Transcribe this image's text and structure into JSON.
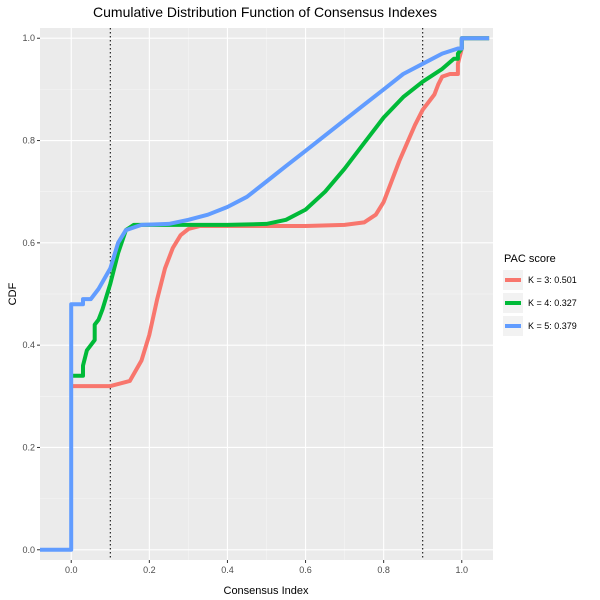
{
  "chart_data": {
    "type": "line",
    "title": "Cumulative Distribution Function of Consensus Indexes",
    "xlabel": "Consensus Index",
    "ylabel": "CDF",
    "xlim": [
      -0.08,
      1.08
    ],
    "ylim": [
      -0.02,
      1.02
    ],
    "x_ticks": [
      0.0,
      0.2,
      0.4,
      0.6,
      0.8,
      1.0
    ],
    "x_tick_labels": [
      "0.0",
      "0.2",
      "0.4",
      "0.6",
      "0.8",
      "1.0"
    ],
    "y_ticks": [
      0.0,
      0.2,
      0.4,
      0.6,
      0.8,
      1.0
    ],
    "y_tick_labels": [
      "0.0",
      "0.2",
      "0.4",
      "0.6",
      "0.8",
      "1.0"
    ],
    "vlines": [
      0.1,
      0.9
    ],
    "grid": true,
    "legend": {
      "title": "PAC score",
      "position": "right"
    },
    "series": [
      {
        "name": "K = 3: 0.501",
        "color": "#f8766d",
        "points": [
          [
            0.0,
            0.32
          ],
          [
            0.05,
            0.32
          ],
          [
            0.1,
            0.32
          ],
          [
            0.15,
            0.33
          ],
          [
            0.18,
            0.37
          ],
          [
            0.2,
            0.42
          ],
          [
            0.22,
            0.49
          ],
          [
            0.24,
            0.55
          ],
          [
            0.26,
            0.59
          ],
          [
            0.28,
            0.615
          ],
          [
            0.3,
            0.627
          ],
          [
            0.33,
            0.633
          ],
          [
            0.4,
            0.633
          ],
          [
            0.5,
            0.633
          ],
          [
            0.6,
            0.633
          ],
          [
            0.7,
            0.635
          ],
          [
            0.75,
            0.64
          ],
          [
            0.78,
            0.655
          ],
          [
            0.8,
            0.68
          ],
          [
            0.82,
            0.72
          ],
          [
            0.84,
            0.76
          ],
          [
            0.86,
            0.795
          ],
          [
            0.88,
            0.83
          ],
          [
            0.9,
            0.86
          ],
          [
            0.92,
            0.88
          ],
          [
            0.93,
            0.89
          ],
          [
            0.94,
            0.91
          ],
          [
            0.95,
            0.925
          ],
          [
            0.97,
            0.93
          ],
          [
            0.99,
            0.93
          ],
          [
            0.99,
            0.95
          ],
          [
            1.0,
            0.98
          ],
          [
            1.0,
            1.0
          ],
          [
            1.07,
            1.0
          ]
        ]
      },
      {
        "name": "K = 4: 0.327",
        "color": "#00ba38",
        "points": [
          [
            0.0,
            0.34
          ],
          [
            0.03,
            0.34
          ],
          [
            0.03,
            0.36
          ],
          [
            0.04,
            0.39
          ],
          [
            0.05,
            0.4
          ],
          [
            0.06,
            0.41
          ],
          [
            0.06,
            0.44
          ],
          [
            0.07,
            0.45
          ],
          [
            0.08,
            0.47
          ],
          [
            0.1,
            0.52
          ],
          [
            0.12,
            0.58
          ],
          [
            0.14,
            0.625
          ],
          [
            0.16,
            0.635
          ],
          [
            0.2,
            0.635
          ],
          [
            0.3,
            0.635
          ],
          [
            0.4,
            0.635
          ],
          [
            0.5,
            0.637
          ],
          [
            0.55,
            0.645
          ],
          [
            0.6,
            0.665
          ],
          [
            0.65,
            0.7
          ],
          [
            0.7,
            0.745
          ],
          [
            0.75,
            0.795
          ],
          [
            0.8,
            0.845
          ],
          [
            0.85,
            0.885
          ],
          [
            0.9,
            0.915
          ],
          [
            0.95,
            0.94
          ],
          [
            0.98,
            0.96
          ],
          [
            0.99,
            0.96
          ],
          [
            0.99,
            0.97
          ],
          [
            1.0,
            0.98
          ],
          [
            1.0,
            1.0
          ],
          [
            1.07,
            1.0
          ]
        ]
      },
      {
        "name": "K = 5: 0.379",
        "color": "#619cff",
        "points": [
          [
            -0.08,
            0.0
          ],
          [
            0.0,
            0.0
          ],
          [
            0.0,
            0.48
          ],
          [
            0.03,
            0.48
          ],
          [
            0.03,
            0.49
          ],
          [
            0.05,
            0.49
          ],
          [
            0.07,
            0.51
          ],
          [
            0.1,
            0.55
          ],
          [
            0.12,
            0.6
          ],
          [
            0.14,
            0.625
          ],
          [
            0.18,
            0.635
          ],
          [
            0.25,
            0.637
          ],
          [
            0.3,
            0.645
          ],
          [
            0.35,
            0.655
          ],
          [
            0.4,
            0.67
          ],
          [
            0.45,
            0.69
          ],
          [
            0.5,
            0.72
          ],
          [
            0.55,
            0.75
          ],
          [
            0.6,
            0.78
          ],
          [
            0.65,
            0.81
          ],
          [
            0.7,
            0.84
          ],
          [
            0.75,
            0.87
          ],
          [
            0.8,
            0.9
          ],
          [
            0.85,
            0.93
          ],
          [
            0.9,
            0.95
          ],
          [
            0.95,
            0.97
          ],
          [
            0.99,
            0.98
          ],
          [
            1.0,
            0.98
          ],
          [
            1.0,
            1.0
          ],
          [
            1.07,
            1.0
          ]
        ]
      }
    ]
  }
}
